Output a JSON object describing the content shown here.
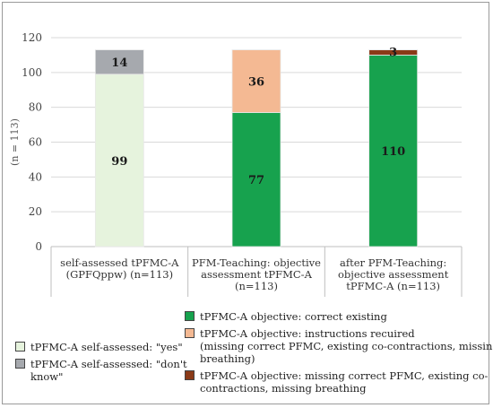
{
  "chart_data": {
    "type": "bar",
    "stacked": true,
    "ylabel": "(n = 113)",
    "ylim": [
      0,
      120
    ],
    "yticks": [
      0,
      20,
      40,
      60,
      80,
      100,
      120
    ],
    "grid": true,
    "categories": [
      [
        "self-assessed tPFMC-A",
        "(GPFQppw) (n=113)"
      ],
      [
        "PFM-Teaching: objective",
        "assessment tPFMC-A",
        "(n=113)"
      ],
      [
        "after PFM-Teaching:",
        "objective assessment",
        "tPFMC-A (n=113)"
      ]
    ],
    "series": [
      {
        "name": "tPFMC-A self-assessed: \"yes\"",
        "color": "#e6f3dd",
        "values": [
          99,
          null,
          null
        ]
      },
      {
        "name": "tPFMC-A self-assessed: \"don't know\"",
        "color": "#a6a9ae",
        "values": [
          14,
          null,
          null
        ]
      },
      {
        "name": "tPFMC-A objective: correct existing",
        "color": "#17a24e",
        "values": [
          null,
          77,
          110
        ]
      },
      {
        "name": "tPFMC-A objective: instructions recuired (missing correct PFMC, existing co-contractions, missing breathing)",
        "color": "#f4b993",
        "values": [
          null,
          36,
          null
        ]
      },
      {
        "name": "tPFMC-A objective: missing correct PFMC, existing co-contractions, missing breathing",
        "color": "#8a3a17",
        "values": [
          null,
          null,
          3
        ]
      }
    ],
    "data_labels": [
      {
        "category": 0,
        "series": 0,
        "text": "99"
      },
      {
        "category": 0,
        "series": 1,
        "text": "14"
      },
      {
        "category": 1,
        "series": 2,
        "text": "77"
      },
      {
        "category": 1,
        "series": 3,
        "text": "36"
      },
      {
        "category": 2,
        "series": 2,
        "text": "110"
      },
      {
        "category": 2,
        "series": 4,
        "text": "3"
      }
    ]
  },
  "legend": {
    "right": [
      {
        "series": 2,
        "lines": [
          "tPFMC-A objective: correct existing"
        ]
      },
      {
        "series": 3,
        "lines": [
          "tPFMC-A objective: instructions recuired",
          "(missing correct PFMC, existing co-contractions, missing",
          "breathing)"
        ]
      },
      {
        "series": 4,
        "lines": [
          "tPFMC-A objective: missing correct PFMC, existing co-",
          "contractions, missing breathing"
        ]
      }
    ],
    "left": [
      {
        "series": 0,
        "lines": [
          "tPFMC-A self-assessed: \"yes\""
        ]
      },
      {
        "series": 1,
        "lines": [
          "tPFMC-A self-assessed: \"don't",
          "know\""
        ]
      }
    ]
  }
}
